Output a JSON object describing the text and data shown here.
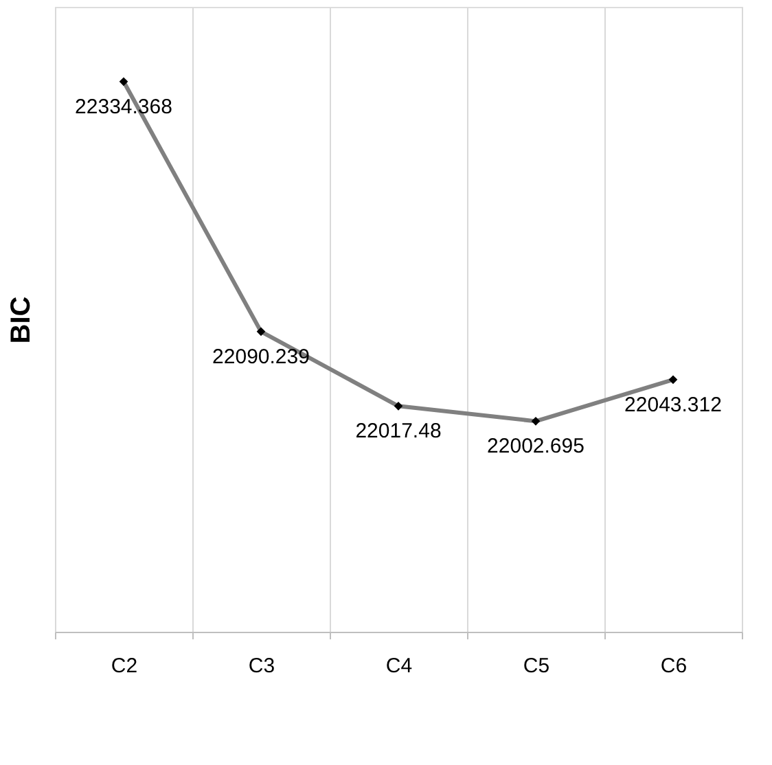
{
  "chart_data": {
    "type": "line",
    "ylabel": "BIC",
    "categories": [
      "C2",
      "C3",
      "C4",
      "C5",
      "C6"
    ],
    "series": [
      {
        "color": "#808080",
        "values": [
          22334.368,
          22090.239,
          22017.48,
          22002.695,
          22043.312
        ]
      }
    ],
    "data_labels": true,
    "marker": "diamond",
    "line_style": "solid",
    "grid": "x",
    "legend": false
  }
}
